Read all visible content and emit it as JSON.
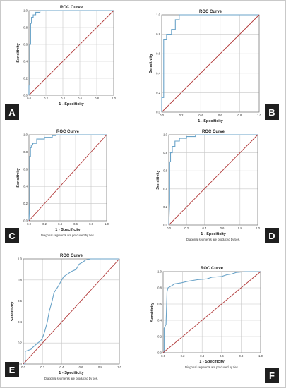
{
  "colors": {
    "roc": "#6aa3c8",
    "diagonal": "#b23a3a",
    "grid": "#c8c8c8",
    "frame": "#777777"
  },
  "chart_data": [
    {
      "panel": "A",
      "type": "line",
      "title": "ROC Curve",
      "xlabel": "1 - Specificity",
      "ylabel": "Sensitivity",
      "xlim": [
        0,
        1
      ],
      "ylim": [
        0,
        1
      ],
      "xticks": [
        "0.0",
        "0.2",
        "0.4",
        "0.6",
        "0.8",
        "1.0"
      ],
      "yticks": [
        "0.0",
        "0.2",
        "0.4",
        "0.6",
        "0.8",
        "1.0"
      ],
      "note": "",
      "series": [
        {
          "name": "roc",
          "x": [
            0,
            0,
            0.01,
            0.01,
            0.02,
            0.02,
            0.03,
            0.03,
            0.05,
            0.05,
            0.08,
            0.08,
            0.13,
            0.13,
            1
          ],
          "y": [
            0,
            0.12,
            0.12,
            0.6,
            0.6,
            0.85,
            0.85,
            0.92,
            0.92,
            0.95,
            0.95,
            0.98,
            0.98,
            1,
            1
          ]
        },
        {
          "name": "diagonal",
          "x": [
            0,
            1
          ],
          "y": [
            0,
            1
          ]
        }
      ]
    },
    {
      "panel": "B",
      "type": "line",
      "title": "ROC Curve",
      "xlabel": "1 - Specificity",
      "ylabel": "Sensitivity",
      "xlim": [
        0,
        1
      ],
      "ylim": [
        0,
        1
      ],
      "xticks": [
        "0.0",
        "0.2",
        "0.4",
        "0.6",
        "0.8",
        "1.0"
      ],
      "yticks": [
        "0.0",
        "0.2",
        "0.4",
        "0.6",
        "0.8",
        "1.0"
      ],
      "note": "",
      "series": [
        {
          "name": "roc",
          "x": [
            0,
            0,
            0.02,
            0.02,
            0.05,
            0.05,
            0.1,
            0.1,
            0.14,
            0.14,
            0.18,
            0.18,
            1
          ],
          "y": [
            0,
            0.15,
            0.15,
            0.75,
            0.75,
            0.8,
            0.8,
            0.85,
            0.85,
            0.95,
            0.95,
            1,
            1
          ]
        },
        {
          "name": "diagonal",
          "x": [
            0,
            1
          ],
          "y": [
            0,
            1
          ]
        }
      ]
    },
    {
      "panel": "C",
      "type": "line",
      "title": "ROC Curve",
      "xlabel": "1 - Specificity",
      "ylabel": "Sensitivity",
      "xlim": [
        0,
        1
      ],
      "ylim": [
        0,
        1
      ],
      "xticks": [
        "0.0",
        "0.2",
        "0.4",
        "0.6",
        "0.8",
        "1.0"
      ],
      "yticks": [
        "0.0",
        "0.2",
        "0.4",
        "0.6",
        "0.8",
        "1.0"
      ],
      "note": "Diagonal segments are produced by ties.",
      "series": [
        {
          "name": "roc",
          "x": [
            0,
            0.01,
            0.01,
            0.02,
            0.02,
            0.03,
            0.03,
            0.05,
            0.05,
            0.1,
            0.1,
            0.2,
            0.2,
            0.3,
            0.3,
            0.35,
            0.35,
            1
          ],
          "y": [
            0,
            0.2,
            0.75,
            0.75,
            0.85,
            0.85,
            0.88,
            0.88,
            0.9,
            0.9,
            0.95,
            0.95,
            0.97,
            0.97,
            0.99,
            0.99,
            1,
            1
          ]
        },
        {
          "name": "diagonal",
          "x": [
            0,
            1
          ],
          "y": [
            0,
            1
          ]
        }
      ]
    },
    {
      "panel": "D",
      "type": "line",
      "title": "ROC Curve",
      "xlabel": "1 - Specificity",
      "ylabel": "Sensitivity",
      "xlim": [
        0,
        1
      ],
      "ylim": [
        0,
        1
      ],
      "xticks": [
        "0.0",
        "0.2",
        "0.4",
        "0.6",
        "0.8",
        "1.0"
      ],
      "yticks": [
        "0.0",
        "0.2",
        "0.4",
        "0.6",
        "0.8",
        "1.0"
      ],
      "note": "Diagonal segments are produced by ties.",
      "series": [
        {
          "name": "roc",
          "x": [
            0,
            0.01,
            0.01,
            0.02,
            0.02,
            0.04,
            0.04,
            0.07,
            0.07,
            0.12,
            0.12,
            0.2,
            0.2,
            0.3,
            0.3,
            1
          ],
          "y": [
            0,
            0.25,
            0.7,
            0.7,
            0.8,
            0.8,
            0.87,
            0.87,
            0.93,
            0.93,
            0.96,
            0.96,
            0.98,
            0.98,
            1,
            1
          ]
        },
        {
          "name": "diagonal",
          "x": [
            0,
            1
          ],
          "y": [
            0,
            1
          ]
        }
      ]
    },
    {
      "panel": "E",
      "type": "line",
      "title": "ROC Curve",
      "xlabel": "1 - Specificity",
      "ylabel": "Sensitivity",
      "xlim": [
        0,
        1
      ],
      "ylim": [
        0,
        1
      ],
      "xticks": [
        "0.0",
        "0.2",
        "0.4",
        "0.6",
        "0.8",
        "1.0"
      ],
      "yticks": [
        "0.0",
        "0.2",
        "0.4",
        "0.6",
        "0.8",
        "1.0"
      ],
      "note": "Diagonal segments are produced by ties.",
      "series": [
        {
          "name": "roc",
          "x": [
            0,
            0.02,
            0.02,
            0.08,
            0.1,
            0.15,
            0.18,
            0.2,
            0.22,
            0.25,
            0.27,
            0.3,
            0.32,
            0.35,
            0.37,
            0.4,
            0.42,
            0.45,
            0.5,
            0.55,
            0.58,
            0.62,
            0.65,
            0.7,
            0.75,
            1
          ],
          "y": [
            0,
            0,
            0.12,
            0.14,
            0.16,
            0.2,
            0.22,
            0.25,
            0.3,
            0.4,
            0.5,
            0.6,
            0.68,
            0.72,
            0.75,
            0.8,
            0.83,
            0.85,
            0.88,
            0.9,
            0.95,
            0.97,
            0.99,
            1,
            1,
            1
          ]
        },
        {
          "name": "diagonal",
          "x": [
            0,
            1
          ],
          "y": [
            0,
            1
          ]
        }
      ]
    },
    {
      "panel": "F",
      "type": "line",
      "title": "ROC Curve",
      "xlabel": "1 - Specificity",
      "ylabel": "Sensitivity",
      "xlim": [
        0,
        1
      ],
      "ylim": [
        0,
        1
      ],
      "xticks": [
        "0.0",
        "0.2",
        "0.4",
        "0.6",
        "0.8",
        "1.0"
      ],
      "yticks": [
        "0.0",
        "0.2",
        "0.4",
        "0.6",
        "0.8",
        "1.0"
      ],
      "note": "Diagonal segments are produced by ties.",
      "series": [
        {
          "name": "roc",
          "x": [
            0,
            0.01,
            0.01,
            0.03,
            0.04,
            0.05,
            0.08,
            0.12,
            0.18,
            0.25,
            0.35,
            0.45,
            0.5,
            0.6,
            0.65,
            0.7,
            0.75,
            0.85,
            1
          ],
          "y": [
            0,
            0,
            0.3,
            0.35,
            0.75,
            0.8,
            0.82,
            0.85,
            0.86,
            0.88,
            0.9,
            0.91,
            0.93,
            0.94,
            0.96,
            0.97,
            0.99,
            1,
            1
          ]
        },
        {
          "name": "diagonal",
          "x": [
            0,
            1
          ],
          "y": [
            0,
            1
          ]
        }
      ]
    }
  ]
}
